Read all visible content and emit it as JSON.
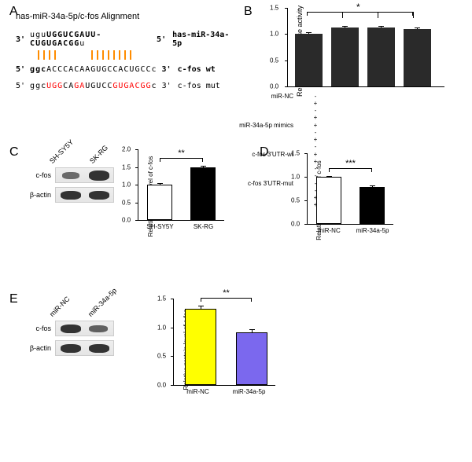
{
  "panels": {
    "A": {
      "label": "A",
      "title": "has-miR-34a-5p/c-fos Alignment"
    },
    "B": {
      "label": "B"
    },
    "C": {
      "label": "C"
    },
    "D": {
      "label": "D"
    },
    "E": {
      "label": "E"
    }
  },
  "alignment": {
    "mirna_5p": "3'",
    "mirna_seq_lower": "ugu",
    "mirna_seq_upper": "UGGUCGAUU-CUGUGACGG",
    "mirna_seq_end": "u",
    "mirna_3p": "5'",
    "mirna_label": "has-miR-34a-5p",
    "wt_5p": "5'",
    "wt_seq_lower": "ggc",
    "wt_seq_upper": "ACCCACAAGUGCCACUGCC",
    "wt_seq_end": "c",
    "wt_3p": "3'",
    "wt_label": "c-fos wt",
    "mut_5p": "5'",
    "mut_seq": "ggcUGGCAGAUGUCCGUGACGGc",
    "mut_3p": "3'",
    "mut_label": "c-fos mut"
  },
  "chartB": {
    "type": "bar",
    "ylabel": "Relative Luseciferase activity",
    "ylim": [
      0,
      1.5
    ],
    "yticks": [
      0.0,
      0.5,
      1.0,
      1.5
    ],
    "values": [
      1.0,
      1.12,
      1.12,
      1.1
    ],
    "errors": [
      0.03,
      0.03,
      0.03,
      0.03
    ],
    "bar_color": "#2a2a2a",
    "sig_text": "*",
    "legend_rows": [
      {
        "label": "miR-NC",
        "vals": [
          "-",
          "+",
          "-",
          "+"
        ]
      },
      {
        "label": "miR-34a-5p mimics",
        "vals": [
          "+",
          "-",
          "+",
          "-"
        ]
      },
      {
        "label": "c-fos 3'UTR-wt",
        "vals": [
          "+",
          "+",
          "-",
          "-"
        ]
      },
      {
        "label": "c-fos 3'UTR-mut",
        "vals": [
          "-",
          "-",
          "+",
          "+"
        ]
      }
    ]
  },
  "blotC": {
    "lanes": [
      "SH-SY5Y",
      "SK-RG"
    ],
    "proteins": [
      "c-fos",
      "β-actin"
    ]
  },
  "chartC": {
    "type": "bar",
    "ylabel": "Relative protein level of c-fos",
    "ylim": [
      0,
      2.0
    ],
    "yticks": [
      0.0,
      0.5,
      1.0,
      1.5,
      2.0
    ],
    "categories": [
      "SH-SY5Y",
      "SK-RG"
    ],
    "values": [
      1.0,
      1.48
    ],
    "errors": [
      0.04,
      0.05
    ],
    "colors": [
      "#ffffff",
      "#000000"
    ],
    "sig_text": "**"
  },
  "chartD": {
    "type": "bar",
    "ylabel": "Relative mRNA level of c-fos",
    "ylim": [
      0,
      1.5
    ],
    "yticks": [
      0.0,
      0.5,
      1.0,
      1.5
    ],
    "categories": [
      "miR-NC",
      "miR-34a-5p"
    ],
    "values": [
      1.0,
      0.78
    ],
    "errors": [
      0.02,
      0.03
    ],
    "colors": [
      "#ffffff",
      "#000000"
    ],
    "sig_text": "***"
  },
  "blotE": {
    "lanes": [
      "miR-NC",
      "miR-34a-5p"
    ],
    "proteins": [
      "c-fos",
      "β-actin"
    ]
  },
  "chartE": {
    "type": "bar",
    "ylabel": "Relative protein level of c-fos",
    "ylim": [
      0,
      1.5
    ],
    "yticks": [
      0.0,
      0.5,
      1.0,
      1.5
    ],
    "categories": [
      "miR-NC",
      "miR-34a-5p"
    ],
    "values": [
      1.32,
      0.92
    ],
    "errors": [
      0.06,
      0.05
    ],
    "colors": [
      "#ffff00",
      "#7b68ee"
    ],
    "sig_text": "**"
  }
}
